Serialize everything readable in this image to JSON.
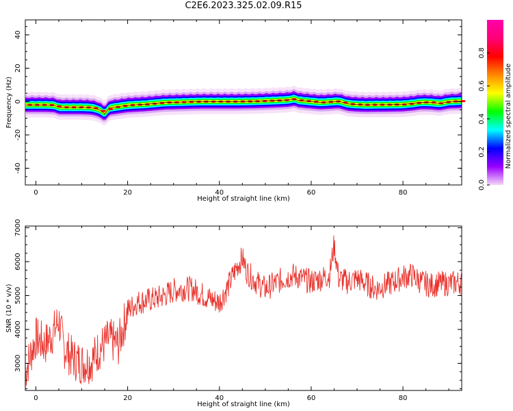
{
  "title": "C2E6.2023.325.02.09.R15",
  "colors": {
    "snr_line": "#e8312b",
    "axis": "#000000"
  },
  "chart_data": [
    {
      "type": "heatmap",
      "name": "spectrogram",
      "xlabel": "Height of straight line (km)",
      "ylabel": "Frequency (Hz)",
      "xlim": [
        -2.3,
        92.8
      ],
      "ylim": [
        -50,
        49
      ],
      "xticks": [
        0,
        20,
        40,
        60,
        80
      ],
      "xticklabels": [
        "0",
        "20",
        "40",
        "60",
        "80"
      ],
      "yticks": [
        -40,
        -20,
        0,
        20,
        40
      ],
      "yticklabels": [
        "-40",
        "-20",
        "0",
        "20",
        "40"
      ],
      "grid": false,
      "ridge": {
        "x": [
          -2.3,
          0,
          2,
          4,
          5,
          6,
          8,
          10,
          12,
          13,
          14,
          14.6,
          15,
          15.5,
          16,
          17,
          18,
          20,
          24,
          28,
          32,
          36,
          40,
          44,
          48,
          52,
          55,
          56.5,
          57,
          60,
          62,
          64,
          66,
          67,
          68,
          70,
          72,
          74,
          76,
          78,
          80,
          82,
          84,
          86,
          88,
          90,
          92.8
        ],
        "y": [
          -2,
          -2,
          -2,
          -2.2,
          -3.4,
          -3.4,
          -3.4,
          -3.4,
          -3.6,
          -4.2,
          -5.2,
          -6.5,
          -7.4,
          -5.6,
          -3.8,
          -3.4,
          -3.0,
          -2.2,
          -1.6,
          -0.6,
          -0.3,
          0,
          0,
          0,
          0.2,
          0.6,
          1.0,
          1.8,
          0.8,
          0,
          -0.5,
          -0.2,
          0.2,
          -0.6,
          -1.4,
          -1.8,
          -2.0,
          -1.9,
          -1.9,
          -1.8,
          -1.7,
          -1.2,
          -0.4,
          -0.5,
          -1.1,
          0,
          0.3
        ]
      },
      "colorbar": {
        "label": "Normalized spectral amplitude",
        "range": [
          0,
          1
        ],
        "ticks": [
          0.0,
          0.2,
          0.4,
          0.6,
          0.8
        ],
        "ticklabels": [
          "0.0",
          "0.2",
          "0.4",
          "0.6",
          "0.8"
        ],
        "colormap": [
          "#f4d6f7",
          "#9900ff",
          "#0000ff",
          "#00ffff",
          "#00ff00",
          "#ffff00",
          "#ff8800",
          "#ff0000",
          "#ff0077",
          "#ff00aa"
        ]
      }
    },
    {
      "type": "line",
      "name": "snr",
      "xlabel": "Height of straight line (km)",
      "ylabel": "SNR (10 * v/v)",
      "xlim": [
        -2.3,
        92.8
      ],
      "ylim": [
        2200,
        7050
      ],
      "xticks": [
        0,
        20,
        40,
        60,
        80
      ],
      "xticklabels": [
        "0",
        "20",
        "40",
        "60",
        "80"
      ],
      "yticks": [
        3000,
        4000,
        5000,
        6000,
        7000
      ],
      "yticklabels": [
        "3000",
        "4000",
        "5000",
        "6000",
        "7000"
      ],
      "grid": false,
      "series": [
        {
          "x": [
            -2.3,
            0,
            2,
            4,
            5,
            6,
            8,
            10,
            12,
            14,
            16,
            18,
            20,
            22,
            24,
            26,
            28,
            30,
            32,
            34,
            36,
            38,
            40,
            42,
            44,
            45,
            46,
            48,
            50,
            52,
            54,
            56,
            58,
            60,
            62,
            64,
            65,
            66,
            68,
            70,
            72,
            74,
            76,
            78,
            80,
            82,
            84,
            86,
            88,
            90,
            92.8
          ],
          "y": [
            2750,
            3750,
            3550,
            3950,
            4300,
            3500,
            3150,
            3000,
            3050,
            3450,
            3700,
            3550,
            4550,
            4800,
            4850,
            4900,
            5000,
            5150,
            5200,
            5200,
            5050,
            4900,
            4800,
            5300,
            5900,
            6100,
            5700,
            5400,
            5200,
            5350,
            5500,
            5600,
            5500,
            5400,
            5500,
            5600,
            6500,
            5500,
            5400,
            5500,
            5350,
            5200,
            5300,
            5400,
            5550,
            5600,
            5400,
            5300,
            5350,
            5350,
            5400
          ]
        }
      ]
    }
  ]
}
